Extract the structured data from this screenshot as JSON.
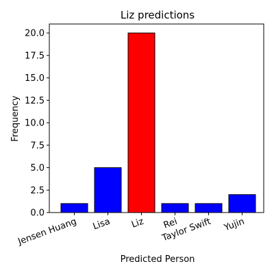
{
  "chart_data": {
    "type": "bar",
    "title": "Liz predictions",
    "xlabel": "Predicted Person",
    "ylabel": "Frequency",
    "categories": [
      "Jensen Huang",
      "Lisa",
      "Liz",
      "Rei",
      "Taylor Swift",
      "Yujin"
    ],
    "values": [
      1,
      5,
      20,
      1,
      1,
      2
    ],
    "bar_colors": [
      "#0000ff",
      "#0000ff",
      "#ff0000",
      "#0000ff",
      "#0000ff",
      "#0000ff"
    ],
    "edge_color": "#000000",
    "ylim": [
      0,
      21
    ],
    "yticks": [
      0.0,
      2.5,
      5.0,
      7.5,
      10.0,
      12.5,
      15.0,
      17.5,
      20.0
    ],
    "ytick_labels": [
      "0.0",
      "2.5",
      "5.0",
      "7.5",
      "10.0",
      "12.5",
      "15.0",
      "17.5",
      "20.0"
    ],
    "xtick_rotation_deg": 20,
    "grid": false,
    "legend": "none"
  }
}
